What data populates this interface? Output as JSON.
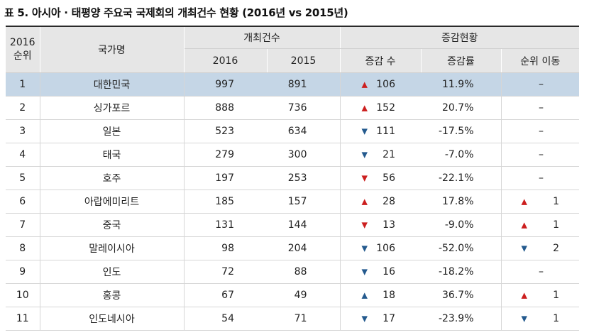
{
  "title": "표 5. 아시아 · 태평양 주요국 국제회의 개최건수 현황 (2016년 vs 2015년)",
  "headers": {
    "rank": "2016\n순위",
    "rank_line1": "2016",
    "rank_line2": "순위",
    "country": "국가명",
    "count_group": "개최건수",
    "change_group": "증감현황",
    "y2016": "2016",
    "y2015": "2015",
    "change": "증감 수",
    "rate": "증감률",
    "move": "순위 이동"
  },
  "colors": {
    "header_bg": "#e6e6e6",
    "highlight_row": "#c5d6e6",
    "up_red": "#cc1f1f",
    "down_blue": "#245a8e"
  },
  "rows": [
    {
      "rank": "1",
      "country": "대한민국",
      "v2016": "997",
      "v2015": "891",
      "dir": "up-red",
      "change": "106",
      "rate": "11.9%",
      "mdir": "",
      "move": "–"
    },
    {
      "rank": "2",
      "country": "싱가포르",
      "v2016": "888",
      "v2015": "736",
      "dir": "up-red",
      "change": "152",
      "rate": "20.7%",
      "mdir": "",
      "move": "–"
    },
    {
      "rank": "3",
      "country": "일본",
      "v2016": "523",
      "v2015": "634",
      "dir": "down-blue",
      "change": "111",
      "rate": "-17.5%",
      "mdir": "",
      "move": "–"
    },
    {
      "rank": "4",
      "country": "태국",
      "v2016": "279",
      "v2015": "300",
      "dir": "down-blue",
      "change": "21",
      "rate": "-7.0%",
      "mdir": "",
      "move": "–"
    },
    {
      "rank": "5",
      "country": "호주",
      "v2016": "197",
      "v2015": "253",
      "dir": "down-red",
      "change": "56",
      "rate": "-22.1%",
      "mdir": "",
      "move": "–"
    },
    {
      "rank": "6",
      "country": "아랍에미리트",
      "v2016": "185",
      "v2015": "157",
      "dir": "up-red",
      "change": "28",
      "rate": "17.8%",
      "mdir": "up-red",
      "move": "1"
    },
    {
      "rank": "7",
      "country": "중국",
      "v2016": "131",
      "v2015": "144",
      "dir": "down-red",
      "change": "13",
      "rate": "-9.0%",
      "mdir": "up-red",
      "move": "1"
    },
    {
      "rank": "8",
      "country": "말레이시아",
      "v2016": "98",
      "v2015": "204",
      "dir": "down-blue",
      "change": "106",
      "rate": "-52.0%",
      "mdir": "down-blue",
      "move": "2"
    },
    {
      "rank": "9",
      "country": "인도",
      "v2016": "72",
      "v2015": "88",
      "dir": "down-blue",
      "change": "16",
      "rate": "-18.2%",
      "mdir": "",
      "move": "–"
    },
    {
      "rank": "10",
      "country": "홍콩",
      "v2016": "67",
      "v2015": "49",
      "dir": "up-blue",
      "change": "18",
      "rate": "36.7%",
      "mdir": "up-red",
      "move": "1"
    },
    {
      "rank": "11",
      "country": "인도네시아",
      "v2016": "54",
      "v2015": "71",
      "dir": "down-blue",
      "change": "17",
      "rate": "-23.9%",
      "mdir": "down-blue",
      "move": "1"
    }
  ]
}
